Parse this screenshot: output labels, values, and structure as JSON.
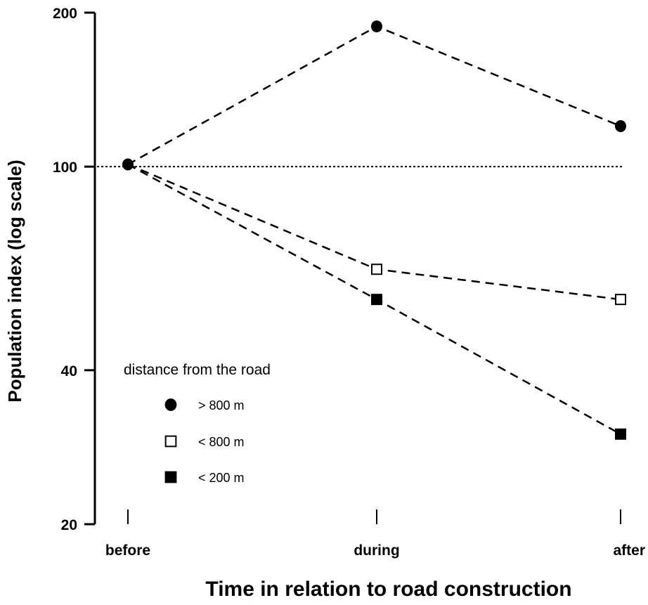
{
  "chart_data": {
    "type": "line",
    "xlabel": "Time in relation to road construction",
    "ylabel": "Population index (log scale)",
    "y_scale": "log",
    "ylim": [
      20,
      200
    ],
    "y_ticks": [
      20,
      40,
      100,
      200
    ],
    "categories": [
      "before",
      "during",
      "after"
    ],
    "reference_line": {
      "y": 100,
      "style": "dotted"
    },
    "legend": {
      "title": "distance from the road",
      "position": "bottom-left"
    },
    "series": [
      {
        "name": "> 800 m",
        "marker": "filled-circle",
        "values": [
          101,
          188,
          120
        ]
      },
      {
        "name": "< 800 m",
        "marker": "open-square",
        "values": [
          101,
          63,
          55
        ]
      },
      {
        "name": "< 200 m",
        "marker": "filled-square",
        "values": [
          101,
          55,
          30
        ]
      }
    ]
  }
}
